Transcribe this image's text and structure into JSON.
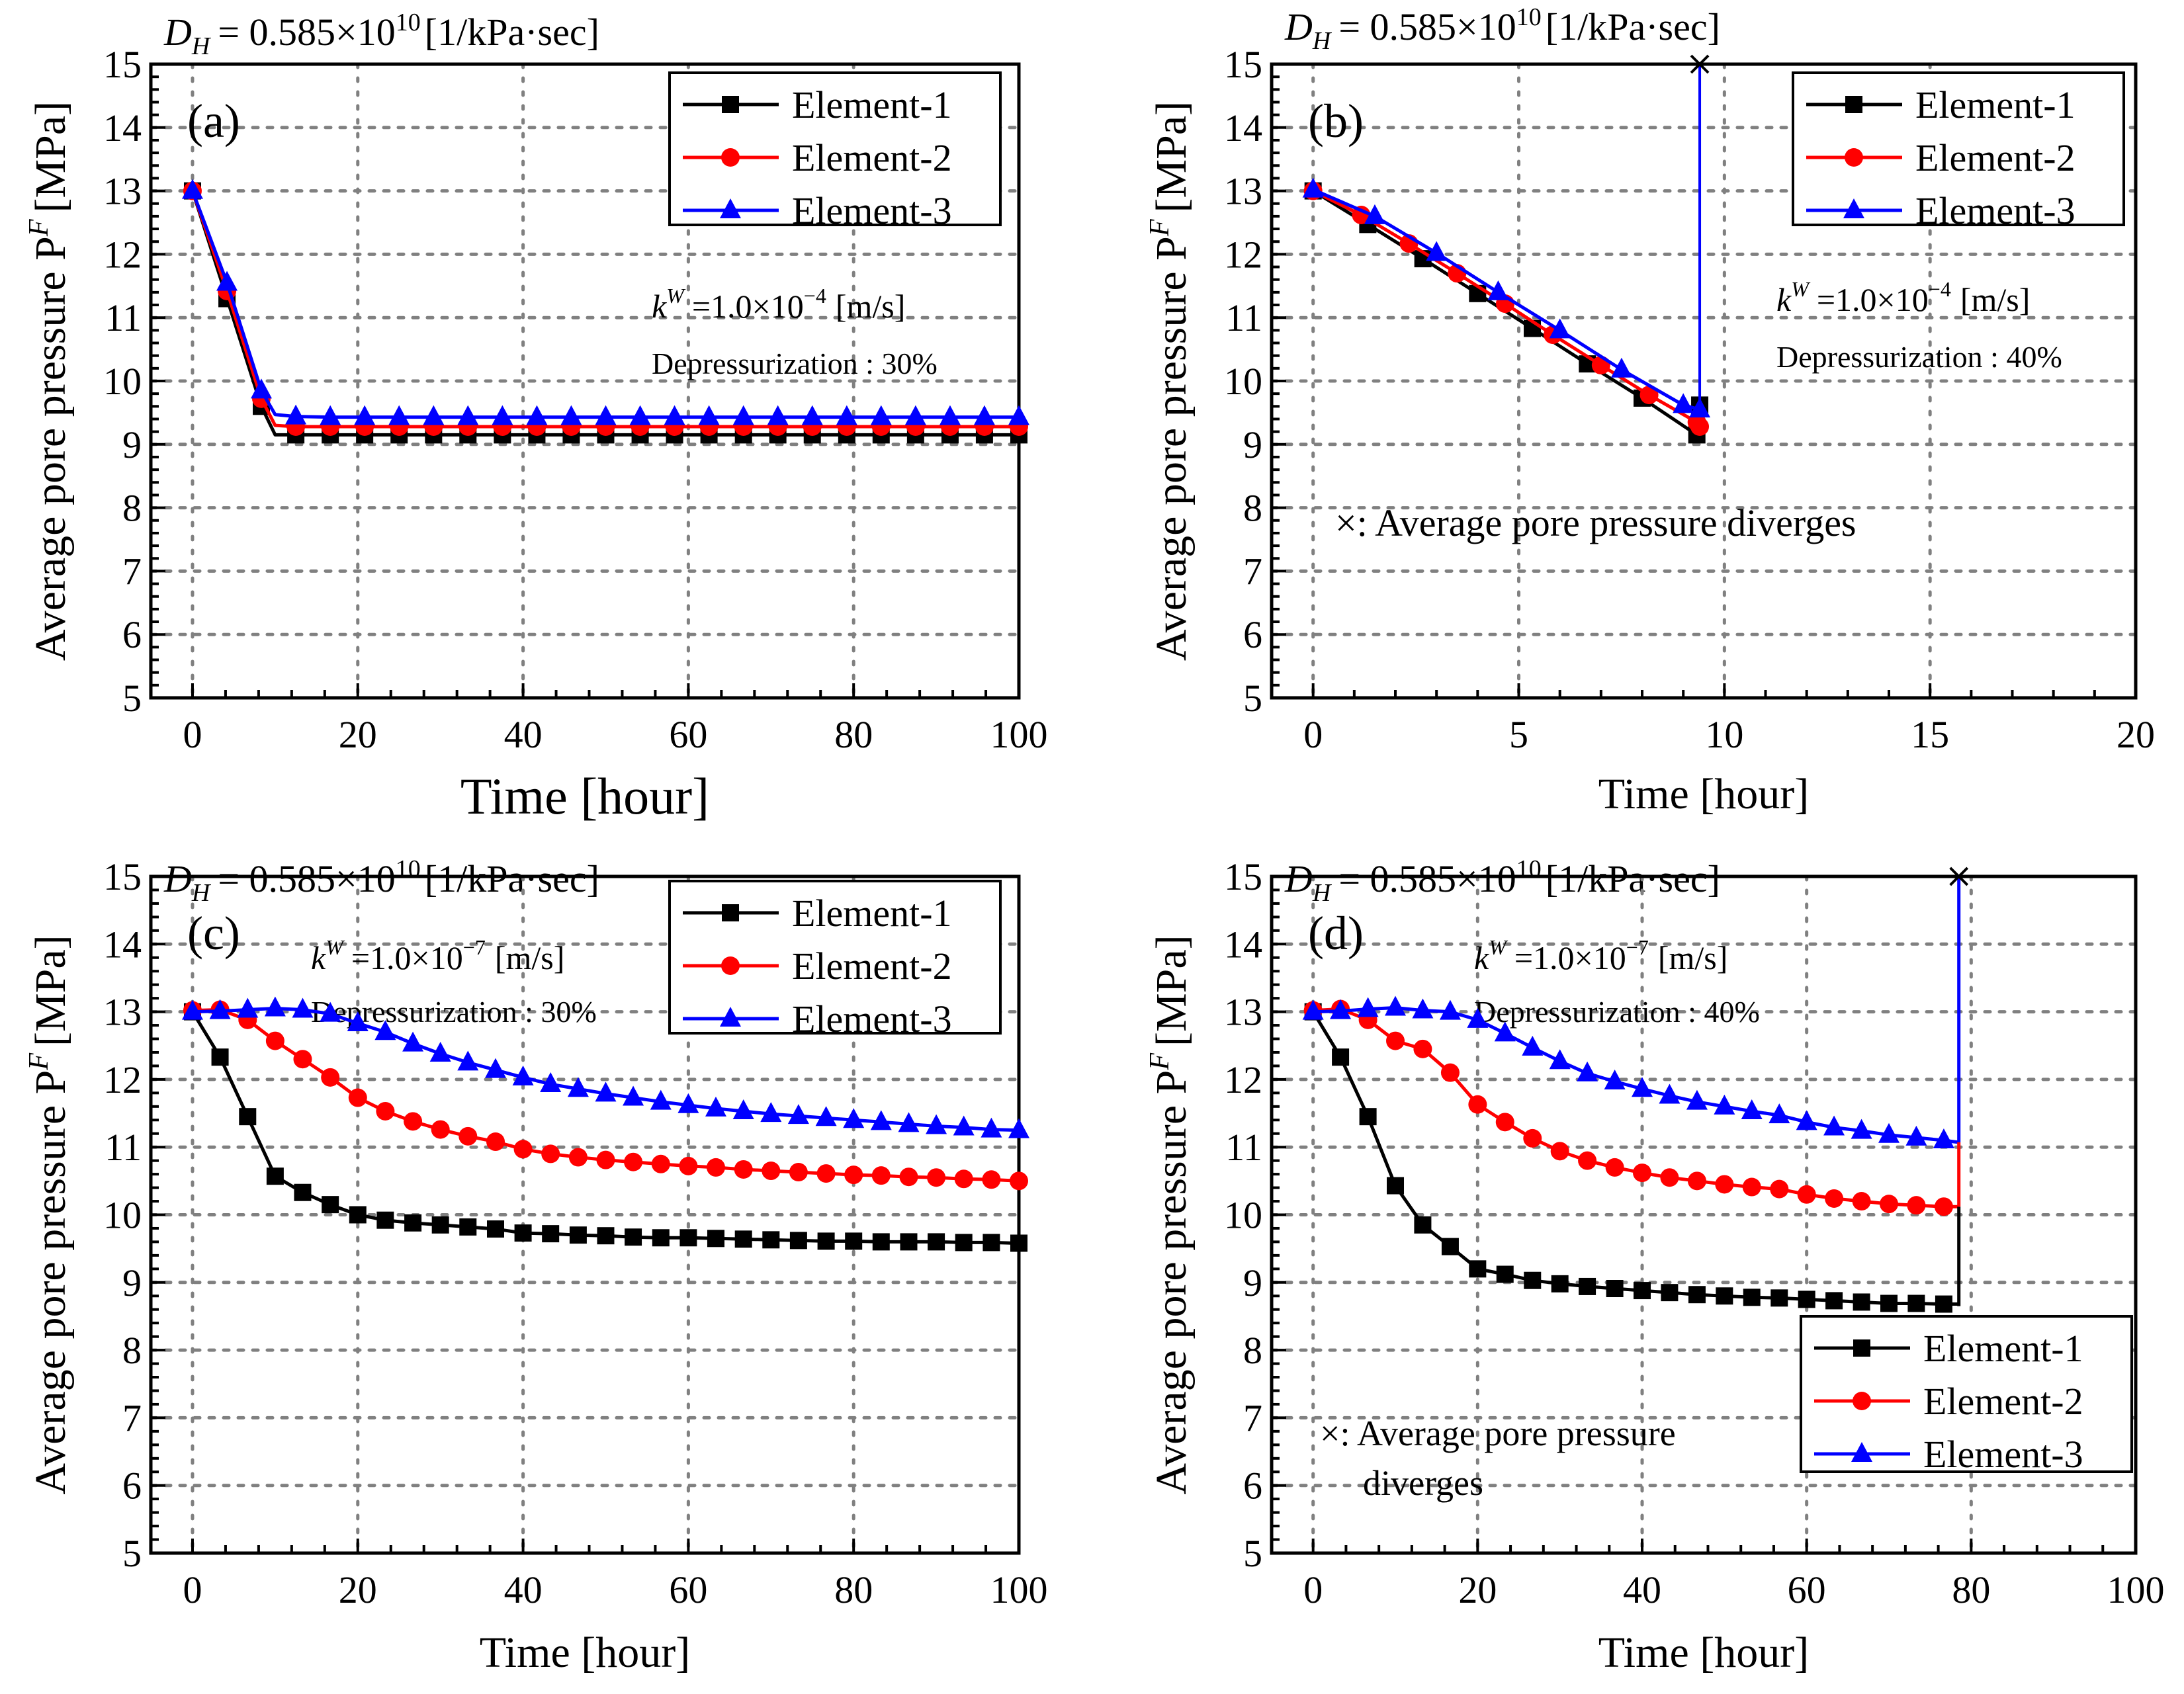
{
  "figure": {
    "common": {
      "dh_label_main": "D",
      "dh_label_sub": "H",
      "dh_label_rest": "= 0.585×10",
      "dh_label_exp": "10",
      "dh_label_unit": "[1/kPa·sec]",
      "ylabel": "Average pore pressure P",
      "ylabel_sup": "F",
      "ylabel_unit": "[MPa]",
      "xlabel": "Time [hour]",
      "colors": {
        "element1": "#000000",
        "element2": "#ff0000",
        "element3": "#0000ff",
        "grid": "#808080"
      }
    }
  },
  "chart_data": [
    {
      "type": "line",
      "panel": "(a)",
      "title": "D_H = 0.585×10^10 [1/kPa·sec]",
      "xlabel": "Time [hour]",
      "ylabel": "Average pore pressure P^F [MPa]",
      "xlim": [
        0,
        100
      ],
      "ylim": [
        5,
        15
      ],
      "xticks": [
        0,
        20,
        40,
        60,
        80,
        100
      ],
      "yticks": [
        5,
        6,
        7,
        8,
        9,
        10,
        11,
        12,
        13,
        14,
        15
      ],
      "grid": true,
      "legend_position": "top-right",
      "annotations": {
        "kw_base": "k",
        "kw_sup": "W",
        "kw_value": "=1.0×10",
        "kw_exp": "−4",
        "kw_unit": "[m/s]",
        "depressurization": "Depressurization : 30%"
      },
      "diverges_note": "",
      "divergence": null,
      "series": [
        {
          "name": "Element-1",
          "marker": "square",
          "x": [
            0,
            4.17,
            8.33,
            10,
            12.5,
            16.67,
            20.83,
            25,
            29.17,
            33.33,
            37.5,
            41.67,
            45.83,
            50,
            54.17,
            58.33,
            62.5,
            66.67,
            70.83,
            75,
            79.17,
            83.33,
            87.5,
            91.67,
            95.83,
            100
          ],
          "y": [
            13.0,
            11.3,
            9.6,
            9.15,
            9.15,
            9.15,
            9.15,
            9.15,
            9.15,
            9.15,
            9.15,
            9.15,
            9.15,
            9.15,
            9.15,
            9.15,
            9.15,
            9.15,
            9.15,
            9.15,
            9.15,
            9.15,
            9.15,
            9.15,
            9.15,
            9.15
          ],
          "marker_skip": [
            3
          ]
        },
        {
          "name": "Element-2",
          "marker": "circle",
          "x": [
            0,
            4.17,
            8.33,
            10,
            12.5,
            16.67,
            20.83,
            25,
            29.17,
            33.33,
            37.5,
            41.67,
            45.83,
            50,
            54.17,
            58.33,
            62.5,
            66.67,
            70.83,
            75,
            79.17,
            83.33,
            87.5,
            91.67,
            95.83,
            100
          ],
          "y": [
            13.0,
            11.42,
            9.72,
            9.3,
            9.28,
            9.28,
            9.28,
            9.28,
            9.28,
            9.28,
            9.28,
            9.28,
            9.28,
            9.28,
            9.28,
            9.28,
            9.28,
            9.28,
            9.28,
            9.28,
            9.28,
            9.28,
            9.28,
            9.28,
            9.28,
            9.28
          ],
          "marker_skip": [
            3
          ]
        },
        {
          "name": "Element-3",
          "marker": "triangle",
          "x": [
            0,
            4.17,
            8.33,
            10,
            12.5,
            16.67,
            20.83,
            25,
            29.17,
            33.33,
            37.5,
            41.67,
            45.83,
            50,
            54.17,
            58.33,
            62.5,
            66.67,
            70.83,
            75,
            79.17,
            83.33,
            87.5,
            91.67,
            95.83,
            100
          ],
          "y": [
            13.0,
            11.55,
            9.85,
            9.47,
            9.44,
            9.43,
            9.43,
            9.43,
            9.43,
            9.43,
            9.43,
            9.43,
            9.43,
            9.43,
            9.43,
            9.43,
            9.43,
            9.43,
            9.43,
            9.43,
            9.43,
            9.43,
            9.43,
            9.43,
            9.43,
            9.43
          ],
          "marker_skip": [
            3
          ]
        }
      ]
    },
    {
      "type": "line",
      "panel": "(b)",
      "title": "D_H = 0.585×10^10 [1/kPa·sec]",
      "xlabel": "Time [hour]",
      "ylabel": "Average pore pressure P^F [MPa]",
      "xlim": [
        0,
        20
      ],
      "ylim": [
        5,
        15
      ],
      "xticks": [
        0,
        5,
        10,
        15,
        20
      ],
      "yticks": [
        5,
        6,
        7,
        8,
        9,
        10,
        11,
        12,
        13,
        14,
        15
      ],
      "grid": true,
      "legend_position": "top-right",
      "annotations": {
        "kw_base": "k",
        "kw_sup": "W",
        "kw_value": "=1.0×10",
        "kw_exp": "−4",
        "kw_unit": "[m/s]",
        "depressurization": "Depressurization : 40%"
      },
      "diverges_note": "×: Average pore pressure diverges",
      "divergence": {
        "x": 9.4,
        "series": "Element-3",
        "from_y": 9.6,
        "to_y": 15
      },
      "series": [
        {
          "name": "Element-1",
          "marker": "square",
          "x": [
            0,
            1.33,
            2.67,
            4.0,
            5.33,
            6.67,
            8.0,
            9.33,
            9.4
          ],
          "y": [
            13.0,
            12.47,
            11.93,
            11.38,
            10.83,
            10.27,
            9.73,
            9.15,
            9.62
          ]
        },
        {
          "name": "Element-2",
          "marker": "circle",
          "x": [
            0,
            1.17,
            2.33,
            3.5,
            4.67,
            5.83,
            7.0,
            8.17,
            9.33,
            9.4
          ],
          "y": [
            13.0,
            12.62,
            12.17,
            11.7,
            11.22,
            10.73,
            10.25,
            9.78,
            9.35,
            9.28
          ]
        },
        {
          "name": "Element-3",
          "marker": "triangle",
          "x": [
            0,
            1.5,
            3.0,
            4.5,
            6.0,
            7.5,
            9.0,
            9.4
          ],
          "y": [
            13.02,
            12.6,
            12.02,
            11.4,
            10.8,
            10.18,
            9.62,
            9.55
          ]
        }
      ]
    },
    {
      "type": "line",
      "panel": "(c)",
      "title": "D_H = 0.585×10^10 [1/kPa·sec]",
      "xlabel": "Time [hour]",
      "ylabel": "Average pore pressure P^F [MPa]",
      "xlim": [
        0,
        100
      ],
      "ylim": [
        5,
        15
      ],
      "xticks": [
        0,
        20,
        40,
        60,
        80,
        100
      ],
      "yticks": [
        5,
        6,
        7,
        8,
        9,
        10,
        11,
        12,
        13,
        14,
        15
      ],
      "grid": true,
      "legend_position": "top-right",
      "annotations": {
        "kw_base": "k",
        "kw_sup": "W",
        "kw_value": "=1.0×10",
        "kw_exp": "−7",
        "kw_unit": "[m/s]",
        "depressurization": "Depressurization : 30%"
      },
      "diverges_note": "",
      "divergence": null,
      "series": [
        {
          "name": "Element-1",
          "marker": "square",
          "x": [
            0,
            3.33,
            6.67,
            10,
            13.33,
            16.67,
            20,
            23.33,
            26.67,
            30,
            33.33,
            36.67,
            40,
            43.33,
            46.67,
            50,
            53.33,
            56.67,
            60,
            63.33,
            66.67,
            70,
            73.33,
            76.67,
            80,
            83.33,
            86.67,
            90,
            93.33,
            96.67,
            100
          ],
          "y": [
            13.0,
            12.33,
            11.45,
            10.57,
            10.33,
            10.15,
            10.0,
            9.92,
            9.88,
            9.85,
            9.82,
            9.79,
            9.73,
            9.72,
            9.7,
            9.69,
            9.67,
            9.66,
            9.66,
            9.65,
            9.64,
            9.63,
            9.62,
            9.61,
            9.61,
            9.6,
            9.6,
            9.6,
            9.59,
            9.59,
            9.58
          ]
        },
        {
          "name": "Element-2",
          "marker": "circle",
          "x": [
            0,
            3.33,
            6.67,
            10,
            13.33,
            16.67,
            20,
            23.33,
            26.67,
            30,
            33.33,
            36.67,
            40,
            43.33,
            46.67,
            50,
            53.33,
            56.67,
            60,
            63.33,
            66.67,
            70,
            73.33,
            76.67,
            80,
            83.33,
            86.67,
            90,
            93.33,
            96.67,
            100
          ],
          "y": [
            13.02,
            13.03,
            12.88,
            12.57,
            12.3,
            12.03,
            11.73,
            11.53,
            11.38,
            11.26,
            11.16,
            11.08,
            10.97,
            10.9,
            10.85,
            10.81,
            10.78,
            10.75,
            10.72,
            10.7,
            10.67,
            10.65,
            10.63,
            10.61,
            10.59,
            10.58,
            10.56,
            10.55,
            10.53,
            10.52,
            10.5
          ]
        },
        {
          "name": "Element-3",
          "marker": "triangle",
          "x": [
            0,
            3.33,
            6.67,
            10,
            13.33,
            16.67,
            20,
            23.33,
            26.67,
            30,
            33.33,
            36.67,
            40,
            43.33,
            46.67,
            50,
            53.33,
            56.67,
            60,
            63.33,
            66.67,
            70,
            73.33,
            76.67,
            80,
            83.33,
            86.67,
            90,
            93.33,
            96.67,
            100
          ],
          "y": [
            13.0,
            13.01,
            13.03,
            13.05,
            13.03,
            12.97,
            12.83,
            12.7,
            12.53,
            12.38,
            12.25,
            12.14,
            12.03,
            11.93,
            11.86,
            11.79,
            11.73,
            11.67,
            11.62,
            11.57,
            11.53,
            11.49,
            11.46,
            11.43,
            11.4,
            11.37,
            11.34,
            11.31,
            11.29,
            11.26,
            11.25
          ]
        }
      ]
    },
    {
      "type": "line",
      "panel": "(d)",
      "title": "D_H = 0.585×10^10 [1/kPa·sec]",
      "xlabel": "Time [hour]",
      "ylabel": "Average pore pressure P^F [MPa]",
      "xlim": [
        0,
        100
      ],
      "ylim": [
        5,
        15
      ],
      "xticks": [
        0,
        20,
        40,
        60,
        80,
        100
      ],
      "yticks": [
        5,
        6,
        7,
        8,
        9,
        10,
        11,
        12,
        13,
        14,
        15
      ],
      "grid": true,
      "legend_position": "bottom-right",
      "annotations": {
        "kw_base": "k",
        "kw_sup": "W",
        "kw_value": "=1.0×10",
        "kw_exp": "−7",
        "kw_unit": "[m/s]",
        "depressurization": "Depressurization : 40%"
      },
      "diverges_note": "×: Average pore pressure",
      "diverges_note2": "diverges",
      "divergence": {
        "x": 78.5,
        "series": "Element-3",
        "from_y": 8.65,
        "to_y": 15,
        "segments": [
          {
            "color": "element1",
            "from": 8.65,
            "to": 10.12
          },
          {
            "color": "element2",
            "from": 10.12,
            "to": 11.07
          },
          {
            "color": "element3",
            "from": 11.07,
            "to": 15
          }
        ]
      },
      "series": [
        {
          "name": "Element-1",
          "marker": "square",
          "x": [
            0,
            3.33,
            6.67,
            10,
            13.33,
            16.67,
            20,
            23.33,
            26.67,
            30,
            33.33,
            36.67,
            40,
            43.33,
            46.67,
            50,
            53.33,
            56.67,
            60,
            63.33,
            66.67,
            70,
            73.33,
            76.67,
            78.5
          ],
          "y": [
            13.0,
            12.33,
            11.45,
            10.43,
            9.85,
            9.53,
            9.2,
            9.12,
            9.03,
            8.98,
            8.94,
            8.91,
            8.88,
            8.85,
            8.82,
            8.8,
            8.78,
            8.77,
            8.75,
            8.73,
            8.71,
            8.69,
            8.69,
            8.68,
            8.68
          ],
          "marker_skip": [
            24
          ]
        },
        {
          "name": "Element-2",
          "marker": "circle",
          "x": [
            0,
            3.33,
            6.67,
            10,
            13.33,
            16.67,
            20,
            23.33,
            26.67,
            30,
            33.33,
            36.67,
            40,
            43.33,
            46.67,
            50,
            53.33,
            56.67,
            60,
            63.33,
            66.67,
            70,
            73.33,
            76.67,
            78.5
          ],
          "y": [
            13.02,
            13.04,
            12.88,
            12.57,
            12.45,
            12.1,
            11.63,
            11.37,
            11.13,
            10.94,
            10.8,
            10.7,
            10.62,
            10.55,
            10.5,
            10.45,
            10.41,
            10.38,
            10.3,
            10.24,
            10.2,
            10.16,
            10.14,
            10.12,
            10.12
          ],
          "marker_skip": [
            24
          ]
        },
        {
          "name": "Element-3",
          "marker": "triangle",
          "x": [
            0,
            3.33,
            6.67,
            10,
            13.33,
            16.67,
            20,
            23.33,
            26.67,
            30,
            33.33,
            36.67,
            40,
            43.33,
            46.67,
            50,
            53.33,
            56.67,
            60,
            63.33,
            66.67,
            70,
            73.33,
            76.67,
            78.5
          ],
          "y": [
            13.0,
            13.01,
            13.04,
            13.06,
            13.02,
            13.0,
            12.88,
            12.68,
            12.47,
            12.27,
            12.09,
            11.97,
            11.86,
            11.76,
            11.67,
            11.6,
            11.53,
            11.47,
            11.37,
            11.29,
            11.24,
            11.18,
            11.14,
            11.1,
            11.07
          ],
          "marker_skip": [
            24
          ]
        }
      ]
    }
  ]
}
